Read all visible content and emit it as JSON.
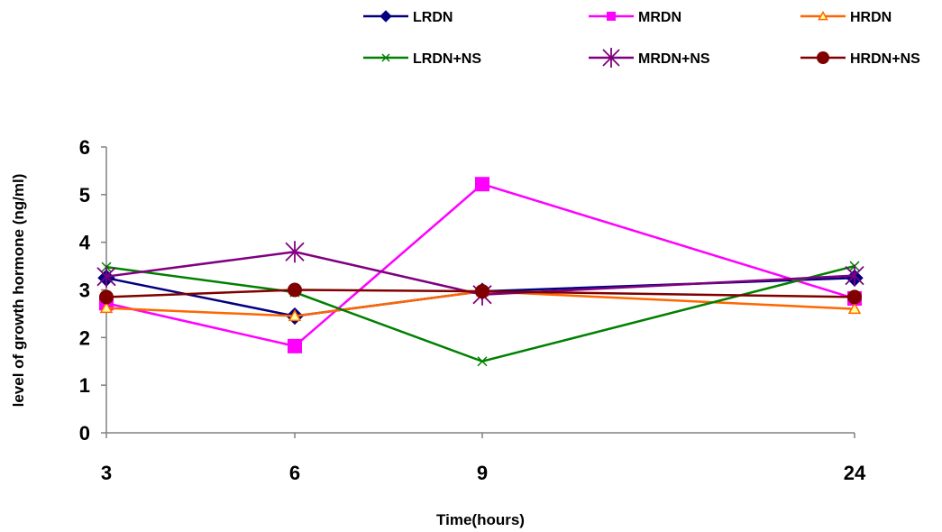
{
  "chart_data": {
    "type": "line",
    "title": "",
    "xlabel": "Time(hours)",
    "ylabel": "level of growth hormone (ng/ml)",
    "categories": [
      "3",
      "6",
      "9",
      "24"
    ],
    "ylim": [
      0,
      6
    ],
    "yticks": [
      "0",
      "1",
      "2",
      "3",
      "4",
      "5",
      "6"
    ],
    "grid": false,
    "legend_position": "top",
    "series": [
      {
        "name": "LRDN",
        "values": [
          3.25,
          2.45,
          2.97,
          3.25
        ],
        "color": "#000080",
        "marker": "diamond"
      },
      {
        "name": "MRDN",
        "values": [
          2.72,
          1.82,
          5.22,
          2.82
        ],
        "color": "#ff00ff",
        "marker": "square"
      },
      {
        "name": "HRDN",
        "values": [
          2.62,
          2.45,
          2.97,
          2.6
        ],
        "color": "#ff6600",
        "marker": "triangle"
      },
      {
        "name": "LRDN+NS",
        "values": [
          3.48,
          2.95,
          1.5,
          3.5
        ],
        "color": "#008000",
        "marker": "x"
      },
      {
        "name": "MRDN+NS",
        "values": [
          3.28,
          3.8,
          2.9,
          3.3
        ],
        "color": "#800080",
        "marker": "star"
      },
      {
        "name": "HRDN+NS",
        "values": [
          2.85,
          3.0,
          2.97,
          2.85
        ],
        "color": "#800000",
        "marker": "circle"
      }
    ]
  }
}
